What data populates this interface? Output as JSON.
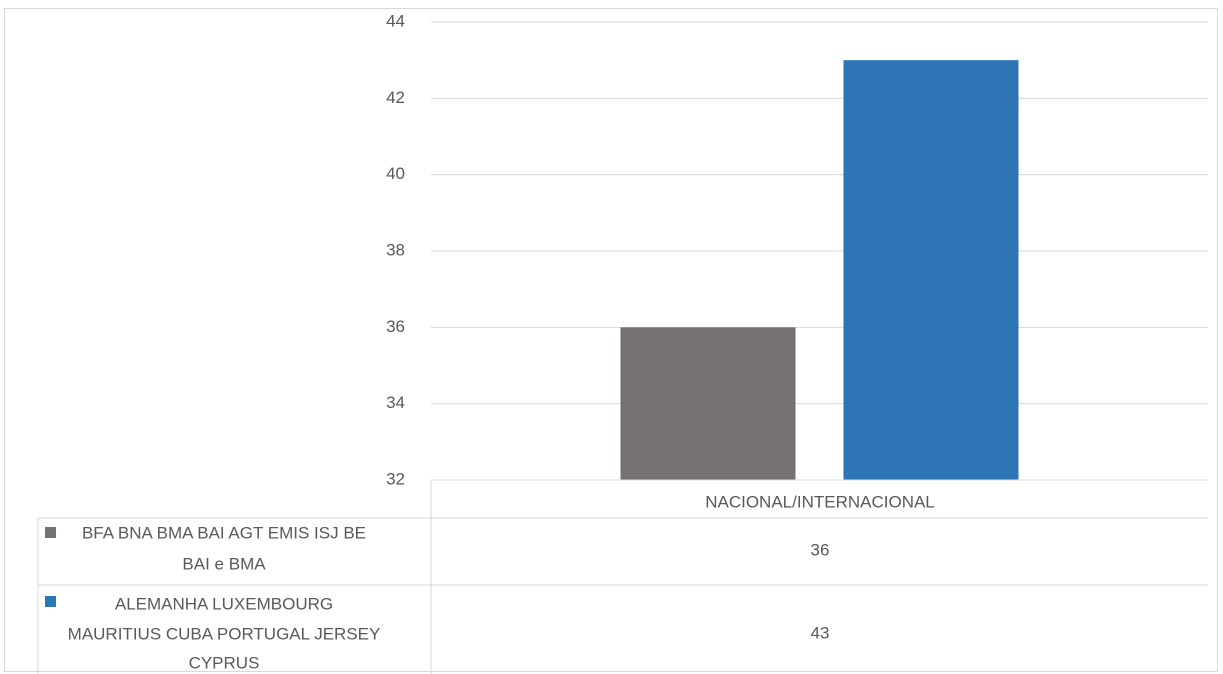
{
  "colors": {
    "series_1": "#767171",
    "series_2": "#2e75b6",
    "grid": "#d9d9d9",
    "text": "#595959"
  },
  "chart_data": {
    "type": "bar",
    "categories": [
      "NACIONAL/INTERNACIONAL"
    ],
    "series": [
      {
        "name": "BFA BNA  BMA BAI AGT EMIS ISJ BE BAI e BMA",
        "values": [
          36
        ]
      },
      {
        "name": "ALEMANHA LUXEMBOURG MAURITIUS CUBA PORTUGAL JERSEY CYPRUS",
        "values": [
          43
        ]
      }
    ],
    "ylim": [
      32,
      44
    ],
    "yticks": [
      "32",
      "34",
      "36",
      "38",
      "40",
      "42",
      "44"
    ],
    "grid": true,
    "legend": "data-table"
  },
  "table": {
    "category_header": "NACIONAL/INTERNACIONAL",
    "rows": [
      {
        "label_lines": [
          "BFA BNA  BMA BAI AGT EMIS ISJ BE",
          "BAI e BMA"
        ],
        "value": "36"
      },
      {
        "label_lines": [
          "ALEMANHA LUXEMBOURG",
          "MAURITIUS CUBA PORTUGAL JERSEY",
          "CYPRUS"
        ],
        "value": "43"
      }
    ]
  }
}
